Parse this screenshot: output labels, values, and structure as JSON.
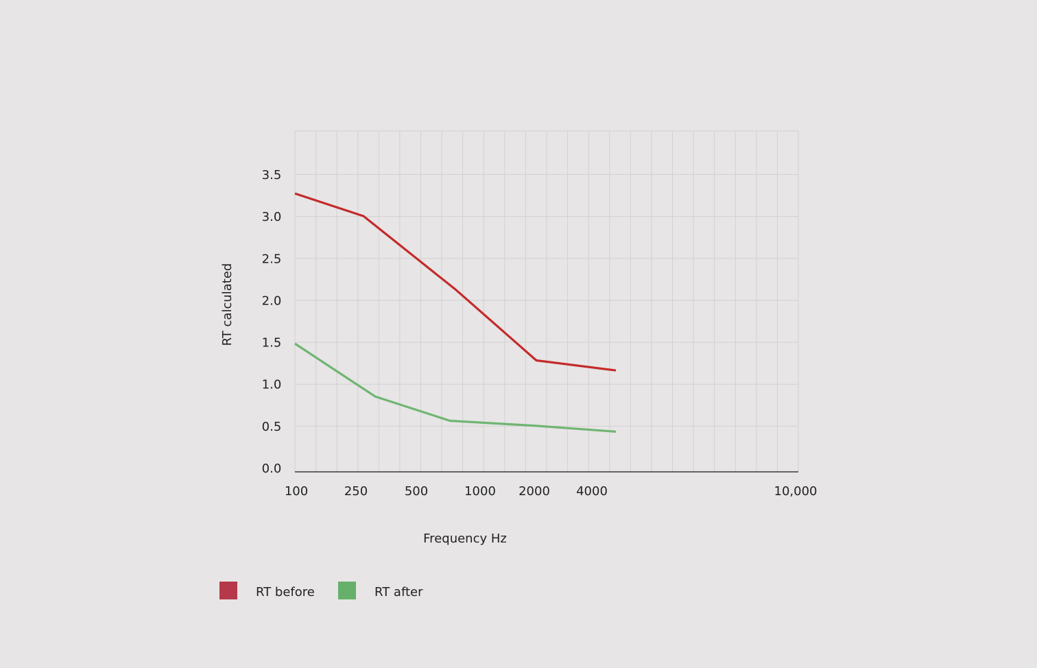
{
  "chart_data": {
    "type": "line",
    "xlabel": "Frequency Hz",
    "ylabel": "RT calculated",
    "x_tick_labels": [
      "100",
      "250",
      "500",
      "1000",
      "2000",
      "4000",
      "10,000"
    ],
    "y_tick_labels": [
      "0.0",
      "0.5",
      "1.0",
      "1.5",
      "2.0",
      "2.5",
      "3.0",
      "3.5"
    ],
    "ylim": [
      0,
      4
    ],
    "grid": true,
    "legend_position": "bottom-left",
    "series": [
      {
        "name": "RT before",
        "color": "#c42a2a",
        "legend_color": "#b5394a",
        "points": [
          {
            "x": 100,
            "y": 3.27
          },
          {
            "x": 250,
            "y": 3.0
          },
          {
            "x": 1000,
            "y": 2.12
          },
          {
            "x": 2000,
            "y": 1.28
          },
          {
            "x": 4000,
            "y": 1.16
          }
        ]
      },
      {
        "name": "RT after",
        "color": "#6fb572",
        "legend_color": "#67b06b",
        "points": [
          {
            "x": 100,
            "y": 1.48
          },
          {
            "x": 250,
            "y": 0.85
          },
          {
            "x": 1000,
            "y": 0.56
          },
          {
            "x": 2000,
            "y": 0.5
          },
          {
            "x": 4000,
            "y": 0.43
          }
        ]
      }
    ]
  }
}
